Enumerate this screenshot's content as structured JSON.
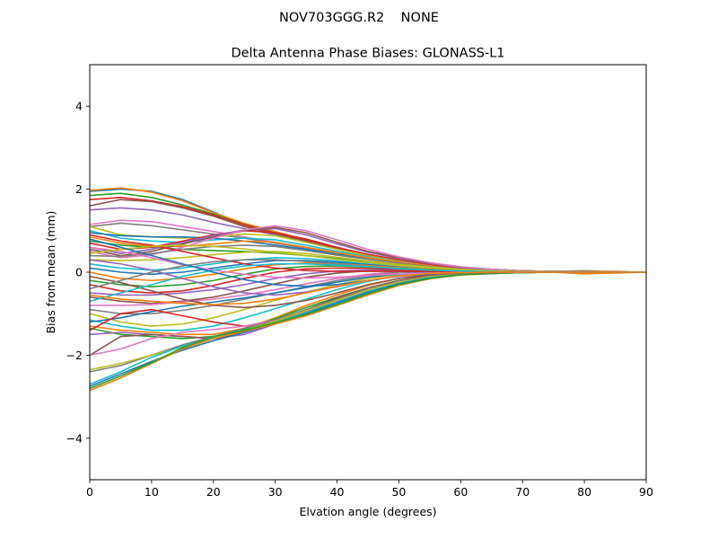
{
  "suptitle": "NOV703GGG.R2    NONE",
  "chart_data": {
    "type": "line",
    "title": "Delta Antenna Phase Biases: GLONASS-L1",
    "xlabel": "Elvation angle (degrees)",
    "ylabel": "Bias from mean (mm)",
    "xlim": [
      0,
      90
    ],
    "ylim": [
      -5,
      5
    ],
    "xticks": [
      0,
      10,
      20,
      30,
      40,
      50,
      60,
      70,
      80,
      90
    ],
    "yticks": [
      -4,
      -2,
      0,
      2,
      4
    ],
    "ytick_labels": [
      "−4",
      "−2",
      "0",
      "2",
      "4"
    ],
    "grid": false,
    "legend": "none",
    "colors": [
      "#1f77b4",
      "#ff7f0e",
      "#2ca02c",
      "#d62728",
      "#9467bd",
      "#8c564b",
      "#e377c2",
      "#7f7f7f",
      "#bcbd22",
      "#17becf"
    ],
    "x": [
      0,
      5,
      10,
      15,
      20,
      25,
      30,
      35,
      40,
      45,
      50,
      55,
      60,
      65,
      70,
      75,
      80,
      85,
      90
    ],
    "series": [
      {
        "values": [
          1.95,
          2.0,
          1.95,
          1.75,
          1.45,
          1.15,
          0.95,
          0.75,
          0.55,
          0.4,
          0.3,
          0.2,
          0.12,
          0.07,
          0.03,
          0.02,
          0.02,
          0.01,
          0
        ]
      },
      {
        "values": [
          1.97,
          2.03,
          1.93,
          1.72,
          1.43,
          1.18,
          0.98,
          0.78,
          0.58,
          0.42,
          0.3,
          0.2,
          0.12,
          0.06,
          0.03,
          0.02,
          0.01,
          0.01,
          0
        ]
      },
      {
        "values": [
          1.85,
          1.9,
          1.8,
          1.62,
          1.4,
          1.15,
          0.95,
          0.77,
          0.58,
          0.42,
          0.3,
          0.19,
          0.11,
          0.06,
          0.03,
          0.02,
          0.02,
          0.01,
          0
        ]
      },
      {
        "values": [
          1.75,
          1.8,
          1.72,
          1.58,
          1.38,
          1.14,
          0.94,
          0.76,
          0.57,
          0.41,
          0.29,
          0.19,
          0.11,
          0.06,
          0.03,
          0.02,
          0.01,
          0.01,
          0
        ]
      },
      {
        "values": [
          1.5,
          1.55,
          1.5,
          1.38,
          1.2,
          1.05,
          0.9,
          0.72,
          0.55,
          0.4,
          0.28,
          0.18,
          0.1,
          0.05,
          0.02,
          0.02,
          0.01,
          0.0,
          0
        ]
      },
      {
        "values": [
          1.6,
          1.75,
          1.7,
          1.55,
          1.35,
          1.1,
          0.92,
          0.74,
          0.56,
          0.41,
          0.29,
          0.19,
          0.11,
          0.06,
          0.03,
          0.02,
          0.02,
          0.01,
          0
        ]
      },
      {
        "values": [
          1.15,
          1.25,
          1.22,
          1.1,
          0.98,
          0.85,
          0.72,
          0.6,
          0.47,
          0.35,
          0.25,
          0.16,
          0.09,
          0.05,
          0.02,
          0.01,
          0.01,
          0.0,
          0
        ]
      },
      {
        "values": [
          1.1,
          1.18,
          1.12,
          1.02,
          0.92,
          0.82,
          0.7,
          0.58,
          0.45,
          0.34,
          0.24,
          0.16,
          0.09,
          0.05,
          0.02,
          0.01,
          0.01,
          0.0,
          0
        ]
      },
      {
        "values": [
          1.1,
          0.9,
          0.85,
          0.82,
          0.85,
          0.92,
          0.88,
          0.72,
          0.55,
          0.4,
          0.28,
          0.18,
          0.1,
          0.05,
          0.02,
          0.02,
          0.04,
          0.02,
          0
        ]
      },
      {
        "values": [
          1.0,
          0.82,
          0.75,
          0.72,
          0.78,
          0.82,
          0.78,
          0.65,
          0.5,
          0.37,
          0.26,
          0.17,
          0.1,
          0.05,
          0.02,
          0.01,
          0.01,
          0.0,
          0
        ]
      },
      {
        "values": [
          0.95,
          0.88,
          0.85,
          0.85,
          0.82,
          0.75,
          0.65,
          0.55,
          0.44,
          0.33,
          0.24,
          0.16,
          0.09,
          0.05,
          0.02,
          0.01,
          0.01,
          0.0,
          0
        ]
      },
      {
        "values": [
          0.85,
          0.7,
          0.62,
          0.62,
          0.68,
          0.75,
          0.72,
          0.6,
          0.47,
          0.35,
          0.25,
          0.16,
          0.09,
          0.04,
          0.02,
          0.01,
          0.01,
          0.0,
          0
        ]
      },
      {
        "values": [
          0.75,
          0.65,
          0.6,
          0.55,
          0.52,
          0.5,
          0.46,
          0.4,
          0.33,
          0.26,
          0.19,
          0.13,
          0.08,
          0.04,
          0.02,
          0.01,
          0.01,
          0.0,
          0
        ]
      },
      {
        "values": [
          0.7,
          0.55,
          0.6,
          0.75,
          0.9,
          1.0,
          0.95,
          0.8,
          0.6,
          0.43,
          0.3,
          0.19,
          0.11,
          0.06,
          0.03,
          0.01,
          0.02,
          0.01,
          0
        ]
      },
      {
        "values": [
          0.6,
          0.45,
          0.55,
          0.72,
          0.88,
          1.02,
          1.05,
          0.9,
          0.68,
          0.48,
          0.33,
          0.21,
          0.12,
          0.06,
          0.03,
          0.02,
          0.02,
          0.01,
          0
        ]
      },
      {
        "values": [
          0.55,
          0.4,
          0.5,
          0.68,
          0.85,
          1.0,
          1.08,
          0.95,
          0.72,
          0.5,
          0.35,
          0.22,
          0.13,
          0.07,
          0.03,
          0.02,
          0.02,
          0.01,
          0
        ]
      },
      {
        "values": [
          0.5,
          0.35,
          0.42,
          0.6,
          0.82,
          1.02,
          1.12,
          1.0,
          0.78,
          0.55,
          0.37,
          0.23,
          0.13,
          0.07,
          0.03,
          0.02,
          0.02,
          0.01,
          0
        ]
      },
      {
        "values": [
          0.4,
          0.38,
          0.45,
          0.55,
          0.62,
          0.65,
          0.62,
          0.52,
          0.41,
          0.31,
          0.22,
          0.14,
          0.08,
          0.04,
          0.02,
          0.01,
          0.01,
          0.0,
          0
        ]
      },
      {
        "values": [
          0.3,
          0.28,
          0.3,
          0.35,
          0.42,
          0.48,
          0.5,
          0.45,
          0.36,
          0.27,
          0.19,
          0.12,
          0.07,
          0.03,
          0.01,
          0.01,
          0.01,
          0.0,
          0
        ]
      },
      {
        "values": [
          0.2,
          0.1,
          0.05,
          0.1,
          0.2,
          0.3,
          0.35,
          0.33,
          0.27,
          0.2,
          0.14,
          0.09,
          0.05,
          0.02,
          0.01,
          0.01,
          0.01,
          0.0,
          0
        ]
      },
      {
        "values": [
          0.1,
          0.0,
          -0.05,
          0.0,
          0.1,
          0.2,
          0.28,
          0.28,
          0.24,
          0.18,
          0.12,
          0.08,
          0.04,
          0.02,
          0.01,
          0.0,
          0.01,
          0.0,
          0
        ]
      },
      {
        "values": [
          0.0,
          -0.15,
          -0.2,
          -0.15,
          -0.05,
          0.08,
          0.18,
          0.22,
          0.2,
          0.16,
          0.11,
          0.07,
          0.04,
          0.02,
          0.01,
          0.0,
          0.0,
          0.0,
          0
        ]
      },
      {
        "values": [
          -0.2,
          -0.3,
          -0.35,
          -0.3,
          -0.2,
          -0.05,
          0.08,
          0.14,
          0.15,
          0.12,
          0.09,
          0.06,
          0.03,
          0.01,
          0.0,
          0.0,
          0.0,
          0.0,
          0
        ]
      },
      {
        "values": [
          -0.3,
          -0.45,
          -0.5,
          -0.45,
          -0.32,
          -0.15,
          0.0,
          0.08,
          0.1,
          0.09,
          0.07,
          0.05,
          0.03,
          0.01,
          0.0,
          0.0,
          0.0,
          0.0,
          0
        ]
      },
      {
        "values": [
          -0.5,
          -0.55,
          -0.55,
          -0.5,
          -0.42,
          -0.3,
          -0.15,
          -0.04,
          0.03,
          0.05,
          0.05,
          0.04,
          0.02,
          0.01,
          0.0,
          0.0,
          0.0,
          0.0,
          0
        ]
      },
      {
        "values": [
          -0.6,
          -0.7,
          -0.75,
          -0.7,
          -0.6,
          -0.45,
          -0.28,
          -0.12,
          -0.02,
          0.03,
          0.04,
          0.03,
          0.02,
          0.01,
          0.0,
          0.0,
          0.0,
          0.0,
          0
        ]
      },
      {
        "values": [
          -0.8,
          -0.8,
          -0.78,
          -0.72,
          -0.65,
          -0.55,
          -0.42,
          -0.28,
          -0.15,
          -0.05,
          0.01,
          0.02,
          0.02,
          0.01,
          0.0,
          0.0,
          0.0,
          0.0,
          0
        ]
      },
      {
        "values": [
          -0.9,
          -1.0,
          -1.0,
          -0.92,
          -0.8,
          -0.65,
          -0.5,
          -0.35,
          -0.2,
          -0.08,
          0.0,
          0.02,
          0.02,
          0.01,
          0.0,
          0.0,
          0.0,
          0.0,
          0
        ]
      },
      {
        "values": [
          -1.0,
          -1.2,
          -1.3,
          -1.25,
          -1.1,
          -0.9,
          -0.68,
          -0.48,
          -0.3,
          -0.15,
          -0.05,
          0.0,
          0.01,
          0.0,
          0.0,
          0.0,
          0.0,
          0.0,
          0
        ]
      },
      {
        "values": [
          -1.15,
          -1.3,
          -1.4,
          -1.4,
          -1.3,
          -1.1,
          -0.88,
          -0.65,
          -0.42,
          -0.22,
          -0.08,
          -0.02,
          0.0,
          0.0,
          0.0,
          0.0,
          0.0,
          0.0,
          0
        ]
      },
      {
        "values": [
          -1.2,
          -1.1,
          -0.95,
          -0.82,
          -0.72,
          -0.62,
          -0.5,
          -0.37,
          -0.24,
          -0.12,
          -0.04,
          0.0,
          0.01,
          0.0,
          0.0,
          0.0,
          0.0,
          0.0,
          0
        ]
      },
      {
        "values": [
          -1.3,
          -1.4,
          -1.45,
          -1.5,
          -1.5,
          -1.35,
          -1.1,
          -0.8,
          -0.55,
          -0.32,
          -0.15,
          -0.06,
          -0.02,
          -0.01,
          0.0,
          0.0,
          0.0,
          0.0,
          0
        ]
      },
      {
        "values": [
          -1.35,
          -1.5,
          -1.55,
          -1.6,
          -1.55,
          -1.38,
          -1.12,
          -0.85,
          -0.6,
          -0.38,
          -0.2,
          -0.09,
          -0.03,
          -0.01,
          0.0,
          0.0,
          0.0,
          0.0,
          0
        ]
      },
      {
        "values": [
          -1.4,
          -1.0,
          -0.9,
          -1.05,
          -1.2,
          -1.3,
          -1.2,
          -0.95,
          -0.68,
          -0.42,
          -0.22,
          -0.1,
          -0.04,
          -0.02,
          -0.01,
          0.0,
          0.0,
          0.0,
          0
        ]
      },
      {
        "values": [
          -1.5,
          -1.45,
          -1.5,
          -1.55,
          -1.6,
          -1.5,
          -1.25,
          -0.95,
          -0.7,
          -0.45,
          -0.25,
          -0.12,
          -0.05,
          -0.02,
          -0.01,
          0.0,
          0.0,
          0.0,
          0
        ]
      },
      {
        "values": [
          -2.0,
          -1.55,
          -1.5,
          -1.55,
          -1.6,
          -1.45,
          -1.2,
          -0.9,
          -0.62,
          -0.38,
          -0.2,
          -0.08,
          -0.03,
          -0.01,
          0.0,
          0.0,
          0.0,
          0.0,
          0
        ]
      },
      {
        "values": [
          -2.0,
          -1.85,
          -1.6,
          -1.45,
          -1.38,
          -1.3,
          -1.15,
          -0.92,
          -0.66,
          -0.42,
          -0.23,
          -0.1,
          -0.04,
          -0.02,
          -0.01,
          0.0,
          0.0,
          0.0,
          0
        ]
      },
      {
        "values": [
          -2.4,
          -2.25,
          -2.0,
          -1.75,
          -1.55,
          -1.35,
          -1.15,
          -0.9,
          -0.65,
          -0.4,
          -0.22,
          -0.1,
          -0.04,
          -0.02,
          -0.01,
          0.0,
          0.0,
          0.0,
          0
        ]
      },
      {
        "values": [
          -2.35,
          -2.2,
          -2.0,
          -1.8,
          -1.6,
          -1.4,
          -1.18,
          -0.93,
          -0.68,
          -0.43,
          -0.24,
          -0.11,
          -0.05,
          -0.02,
          -0.01,
          0.0,
          0.0,
          0.0,
          0
        ]
      },
      {
        "values": [
          -2.7,
          -2.4,
          -2.05,
          -1.78,
          -1.58,
          -1.42,
          -1.22,
          -0.98,
          -0.72,
          -0.47,
          -0.27,
          -0.13,
          -0.06,
          -0.03,
          -0.01,
          0.0,
          0.0,
          0.0,
          0
        ]
      },
      {
        "values": [
          -2.75,
          -2.45,
          -2.15,
          -1.88,
          -1.65,
          -1.45,
          -1.24,
          -1.0,
          -0.74,
          -0.49,
          -0.28,
          -0.14,
          -0.06,
          -0.03,
          -0.01,
          0.0,
          -0.03,
          0.0,
          0
        ]
      },
      {
        "values": [
          -2.85,
          -2.55,
          -2.2,
          -1.85,
          -1.6,
          -1.42,
          -1.25,
          -1.05,
          -0.8,
          -0.55,
          -0.32,
          -0.16,
          -0.07,
          -0.03,
          -0.01,
          0.0,
          -0.04,
          -0.02,
          0
        ]
      },
      {
        "values": [
          -2.8,
          -2.5,
          -2.18,
          -1.82,
          -1.55,
          -1.4,
          -1.22,
          -1.02,
          -0.78,
          -0.52,
          -0.3,
          -0.15,
          -0.06,
          -0.03,
          -0.01,
          0.0,
          0.0,
          0.0,
          0
        ]
      },
      {
        "values": [
          0.9,
          0.75,
          0.65,
          0.5,
          0.35,
          0.2,
          0.1,
          0.04,
          0.02,
          0.02,
          0.02,
          0.02,
          0.01,
          0.01,
          0.0,
          0.0,
          0.0,
          0.0,
          0
        ]
      },
      {
        "values": [
          0.3,
          0.2,
          0.05,
          -0.15,
          -0.35,
          -0.5,
          -0.55,
          -0.48,
          -0.35,
          -0.2,
          -0.09,
          -0.03,
          0.0,
          0.0,
          0.0,
          0.0,
          0.0,
          0.0,
          0
        ]
      },
      {
        "values": [
          -0.1,
          -0.25,
          -0.45,
          -0.65,
          -0.8,
          -0.85,
          -0.8,
          -0.68,
          -0.5,
          -0.3,
          -0.15,
          -0.06,
          -0.02,
          -0.01,
          0.0,
          0.0,
          0.0,
          0.0,
          0
        ]
      },
      {
        "values": [
          0.6,
          0.5,
          0.35,
          0.18,
          0.05,
          -0.05,
          -0.12,
          -0.14,
          -0.12,
          -0.08,
          -0.04,
          -0.02,
          -0.01,
          0.0,
          0.0,
          0.0,
          0.0,
          0.0,
          0
        ]
      },
      {
        "values": [
          -0.4,
          -0.2,
          0.0,
          0.15,
          0.25,
          0.3,
          0.3,
          0.26,
          0.2,
          0.14,
          0.09,
          0.05,
          0.03,
          0.01,
          0.0,
          0.0,
          0.0,
          0.0,
          0
        ]
      },
      {
        "values": [
          0.45,
          0.55,
          0.62,
          0.65,
          0.62,
          0.56,
          0.48,
          0.4,
          0.31,
          0.23,
          0.16,
          0.1,
          0.06,
          0.03,
          0.01,
          0.01,
          0.0,
          0.0,
          0
        ]
      },
      {
        "values": [
          -0.7,
          -0.5,
          -0.3,
          -0.1,
          0.05,
          0.15,
          0.2,
          0.2,
          0.17,
          0.13,
          0.09,
          0.05,
          0.03,
          0.01,
          0.0,
          0.0,
          0.0,
          0.0,
          0
        ]
      },
      {
        "values": [
          0.8,
          0.6,
          0.4,
          0.2,
          0.0,
          -0.18,
          -0.3,
          -0.34,
          -0.3,
          -0.2,
          -0.1,
          -0.04,
          -0.01,
          0.0,
          0.0,
          0.0,
          0.0,
          0.0,
          0
        ]
      },
      {
        "values": [
          -0.55,
          -0.65,
          -0.7,
          -0.75,
          -0.78,
          -0.75,
          -0.65,
          -0.5,
          -0.34,
          -0.2,
          -0.09,
          -0.03,
          -0.01,
          0.0,
          0.0,
          0.0,
          0.0,
          0.0,
          0
        ]
      }
    ]
  }
}
